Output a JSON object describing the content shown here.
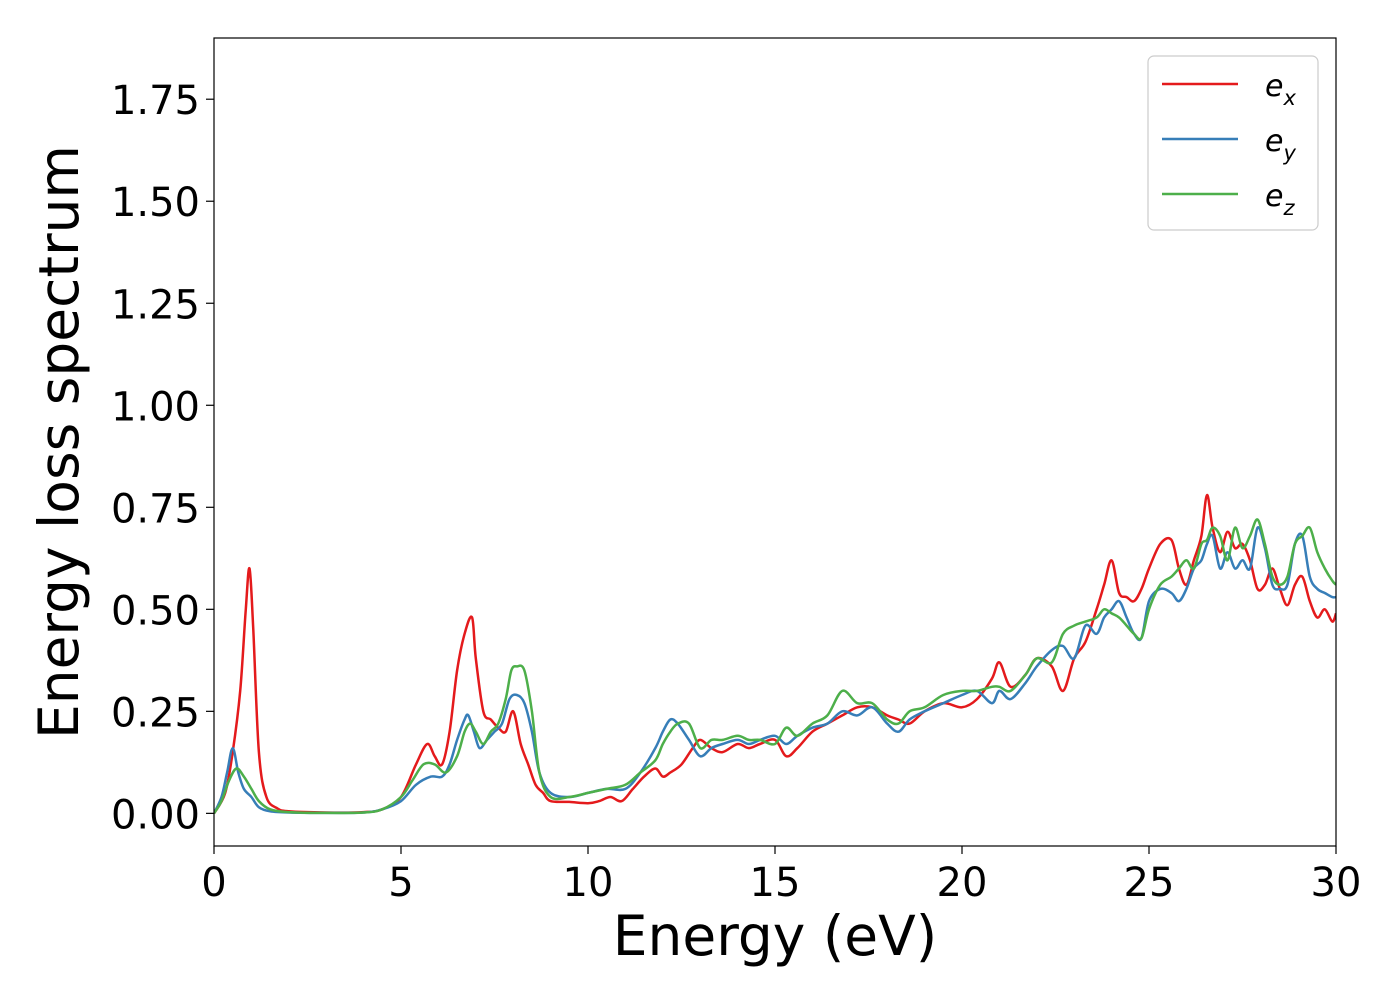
{
  "chart_data": {
    "type": "line",
    "xlabel": "Energy (eV)",
    "ylabel": "Energy loss spectrum",
    "xlim": [
      0,
      30
    ],
    "ylim": [
      -0.08,
      1.9
    ],
    "xticks": [
      0,
      5,
      10,
      15,
      20,
      25,
      30
    ],
    "xtick_labels": [
      "0",
      "5",
      "10",
      "15",
      "20",
      "25",
      "30"
    ],
    "yticks": [
      0,
      0.25,
      0.5,
      0.75,
      1.0,
      1.25,
      1.5,
      1.75
    ],
    "ytick_labels": [
      "0.00",
      "0.25",
      "0.50",
      "0.75",
      "1.00",
      "1.25",
      "1.50",
      "1.75"
    ],
    "grid": false,
    "legend_position": "top-right",
    "series": [
      {
        "name": "e",
        "subscript": "x",
        "color": "#e41a1c",
        "x": [
          0,
          0.3,
          0.5,
          0.7,
          0.85,
          0.95,
          1.05,
          1.2,
          1.4,
          1.7,
          2.0,
          3.0,
          4.0,
          4.5,
          5.0,
          5.4,
          5.7,
          5.9,
          6.1,
          6.3,
          6.5,
          6.7,
          6.9,
          7.0,
          7.2,
          7.4,
          7.6,
          7.8,
          8.0,
          8.2,
          8.4,
          8.6,
          8.8,
          9.0,
          9.5,
          10.0,
          10.3,
          10.6,
          10.9,
          11.2,
          11.5,
          11.8,
          12.0,
          12.2,
          12.5,
          12.8,
          13.0,
          13.3,
          13.6,
          14.0,
          14.3,
          14.6,
          15.0,
          15.3,
          15.6,
          16.0,
          16.4,
          16.8,
          17.2,
          17.6,
          18.0,
          18.3,
          18.6,
          19.0,
          19.5,
          20.0,
          20.4,
          20.8,
          21.0,
          21.3,
          21.7,
          22.0,
          22.4,
          22.7,
          23.0,
          23.3,
          23.6,
          23.8,
          24.0,
          24.2,
          24.4,
          24.6,
          24.8,
          25.0,
          25.3,
          25.6,
          25.8,
          26.0,
          26.2,
          26.4,
          26.55,
          26.7,
          26.9,
          27.1,
          27.3,
          27.5,
          27.7,
          27.9,
          28.1,
          28.3,
          28.5,
          28.7,
          28.9,
          29.1,
          29.3,
          29.5,
          29.7,
          29.9,
          30.0
        ],
        "y": [
          0.0,
          0.05,
          0.15,
          0.3,
          0.5,
          0.6,
          0.45,
          0.15,
          0.04,
          0.012,
          0.005,
          0.002,
          0.003,
          0.01,
          0.04,
          0.12,
          0.17,
          0.14,
          0.12,
          0.2,
          0.35,
          0.44,
          0.48,
          0.38,
          0.25,
          0.23,
          0.21,
          0.2,
          0.25,
          0.17,
          0.12,
          0.07,
          0.05,
          0.03,
          0.028,
          0.025,
          0.03,
          0.04,
          0.03,
          0.06,
          0.09,
          0.11,
          0.09,
          0.1,
          0.12,
          0.16,
          0.18,
          0.16,
          0.15,
          0.17,
          0.16,
          0.17,
          0.18,
          0.14,
          0.16,
          0.2,
          0.22,
          0.24,
          0.26,
          0.26,
          0.24,
          0.23,
          0.22,
          0.25,
          0.27,
          0.26,
          0.28,
          0.33,
          0.37,
          0.31,
          0.34,
          0.38,
          0.36,
          0.3,
          0.38,
          0.42,
          0.5,
          0.56,
          0.62,
          0.54,
          0.53,
          0.52,
          0.55,
          0.6,
          0.66,
          0.67,
          0.6,
          0.56,
          0.62,
          0.68,
          0.78,
          0.7,
          0.64,
          0.69,
          0.65,
          0.66,
          0.62,
          0.55,
          0.56,
          0.6,
          0.55,
          0.51,
          0.56,
          0.58,
          0.52,
          0.48,
          0.5,
          0.47,
          0.49
        ]
      },
      {
        "name": "e",
        "subscript": "y",
        "color": "#377eb8",
        "x": [
          0,
          0.2,
          0.35,
          0.5,
          0.65,
          0.8,
          1.0,
          1.2,
          1.5,
          2.0,
          3.0,
          4.0,
          4.5,
          5.0,
          5.4,
          5.8,
          6.1,
          6.3,
          6.5,
          6.7,
          6.8,
          6.95,
          7.1,
          7.3,
          7.5,
          7.7,
          7.9,
          8.1,
          8.3,
          8.5,
          8.7,
          9.0,
          9.5,
          10.0,
          10.5,
          11.0,
          11.4,
          11.8,
          12.0,
          12.2,
          12.4,
          12.7,
          13.0,
          13.3,
          13.6,
          14.0,
          14.3,
          14.6,
          15.0,
          15.3,
          15.6,
          16.0,
          16.4,
          16.8,
          17.2,
          17.6,
          18.0,
          18.3,
          18.6,
          19.0,
          19.5,
          20.0,
          20.4,
          20.8,
          21.0,
          21.3,
          21.7,
          22.0,
          22.4,
          22.7,
          23.0,
          23.3,
          23.6,
          23.8,
          24.0,
          24.2,
          24.4,
          24.6,
          24.8,
          25.0,
          25.3,
          25.6,
          25.8,
          26.0,
          26.2,
          26.4,
          26.55,
          26.7,
          26.9,
          27.1,
          27.3,
          27.5,
          27.7,
          27.9,
          28.1,
          28.3,
          28.5,
          28.7,
          28.9,
          29.1,
          29.3,
          29.5,
          29.7,
          29.9,
          30.0
        ],
        "y": [
          0.0,
          0.04,
          0.1,
          0.16,
          0.1,
          0.06,
          0.04,
          0.015,
          0.005,
          0.002,
          0.001,
          0.002,
          0.01,
          0.03,
          0.07,
          0.09,
          0.09,
          0.12,
          0.18,
          0.23,
          0.24,
          0.2,
          0.16,
          0.18,
          0.2,
          0.22,
          0.28,
          0.29,
          0.27,
          0.2,
          0.1,
          0.05,
          0.04,
          0.05,
          0.06,
          0.06,
          0.1,
          0.16,
          0.2,
          0.23,
          0.22,
          0.18,
          0.14,
          0.16,
          0.17,
          0.18,
          0.17,
          0.18,
          0.19,
          0.17,
          0.19,
          0.21,
          0.22,
          0.25,
          0.24,
          0.26,
          0.22,
          0.2,
          0.23,
          0.25,
          0.27,
          0.29,
          0.3,
          0.27,
          0.3,
          0.28,
          0.32,
          0.36,
          0.4,
          0.41,
          0.38,
          0.46,
          0.44,
          0.48,
          0.5,
          0.52,
          0.48,
          0.44,
          0.43,
          0.52,
          0.55,
          0.54,
          0.52,
          0.55,
          0.6,
          0.62,
          0.66,
          0.68,
          0.6,
          0.64,
          0.6,
          0.62,
          0.6,
          0.7,
          0.65,
          0.56,
          0.55,
          0.56,
          0.66,
          0.68,
          0.58,
          0.55,
          0.54,
          0.53,
          0.53
        ]
      },
      {
        "name": "e",
        "subscript": "z",
        "color": "#4daf4a",
        "x": [
          0,
          0.2,
          0.4,
          0.6,
          0.8,
          1.0,
          1.2,
          1.5,
          2.0,
          3.0,
          4.0,
          4.5,
          5.0,
          5.3,
          5.6,
          5.9,
          6.2,
          6.5,
          6.7,
          6.85,
          7.0,
          7.2,
          7.4,
          7.6,
          7.8,
          7.95,
          8.1,
          8.3,
          8.5,
          8.7,
          9.0,
          9.5,
          10.0,
          10.5,
          11.0,
          11.4,
          11.8,
          12.0,
          12.2,
          12.4,
          12.7,
          13.0,
          13.3,
          13.6,
          14.0,
          14.3,
          14.6,
          15.0,
          15.3,
          15.6,
          16.0,
          16.4,
          16.8,
          17.2,
          17.6,
          18.0,
          18.3,
          18.6,
          19.0,
          19.5,
          20.0,
          20.4,
          20.8,
          21.0,
          21.3,
          21.7,
          22.0,
          22.4,
          22.7,
          23.0,
          23.3,
          23.6,
          23.8,
          24.0,
          24.2,
          24.4,
          24.6,
          24.8,
          25.0,
          25.3,
          25.6,
          25.8,
          26.0,
          26.2,
          26.4,
          26.55,
          26.7,
          26.9,
          27.1,
          27.3,
          27.5,
          27.7,
          27.9,
          28.1,
          28.3,
          28.5,
          28.7,
          28.9,
          29.1,
          29.3,
          29.5,
          29.7,
          29.9,
          30.0
        ],
        "y": [
          0.0,
          0.03,
          0.08,
          0.11,
          0.09,
          0.06,
          0.03,
          0.01,
          0.003,
          0.001,
          0.002,
          0.01,
          0.04,
          0.08,
          0.12,
          0.12,
          0.1,
          0.14,
          0.2,
          0.22,
          0.2,
          0.17,
          0.2,
          0.22,
          0.28,
          0.35,
          0.36,
          0.35,
          0.25,
          0.1,
          0.04,
          0.04,
          0.05,
          0.06,
          0.07,
          0.1,
          0.13,
          0.17,
          0.2,
          0.22,
          0.22,
          0.16,
          0.18,
          0.18,
          0.19,
          0.18,
          0.18,
          0.17,
          0.21,
          0.19,
          0.22,
          0.24,
          0.3,
          0.27,
          0.27,
          0.23,
          0.22,
          0.25,
          0.26,
          0.29,
          0.3,
          0.3,
          0.31,
          0.31,
          0.3,
          0.34,
          0.38,
          0.37,
          0.44,
          0.46,
          0.47,
          0.48,
          0.5,
          0.49,
          0.48,
          0.46,
          0.44,
          0.43,
          0.5,
          0.56,
          0.58,
          0.6,
          0.62,
          0.6,
          0.66,
          0.67,
          0.7,
          0.68,
          0.62,
          0.7,
          0.65,
          0.68,
          0.72,
          0.66,
          0.58,
          0.56,
          0.58,
          0.66,
          0.68,
          0.7,
          0.64,
          0.6,
          0.57,
          0.56
        ]
      }
    ]
  }
}
